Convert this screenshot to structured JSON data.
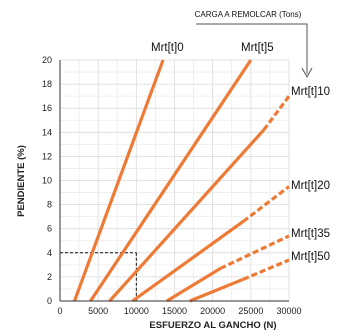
{
  "chart_data": {
    "type": "line",
    "top_label": "CARGA A REMOLCAR (Tons)",
    "xlabel": "ESFUERZO AL GANCHO (N)",
    "ylabel": "PENDIENTE (%)",
    "xlim": [
      0,
      30000
    ],
    "ylim": [
      0,
      20
    ],
    "x_ticks": [
      "0",
      "5000",
      "10000",
      "15000",
      "20000",
      "25000",
      "30000"
    ],
    "y_ticks": [
      "0",
      "2",
      "4",
      "6",
      "8",
      "10",
      "12",
      "14",
      "16",
      "18",
      "20"
    ],
    "grid": true,
    "line_color": "#ee7a35",
    "series": [
      {
        "name": "Mrt[t]0",
        "points": [
          [
            1900,
            0
          ],
          [
            13500,
            20
          ]
        ]
      },
      {
        "name": "Mrt[t]5",
        "points": [
          [
            4000,
            0
          ],
          [
            25000,
            20
          ]
        ]
      },
      {
        "name": "Mrt[t]10",
        "points": [
          [
            6500,
            0
          ],
          [
            26700,
            14.2
          ]
        ],
        "dashed_points": [
          [
            26700,
            14.2
          ],
          [
            30000,
            17
          ]
        ]
      },
      {
        "name": "Mrt[t]20",
        "points": [
          [
            9500,
            0
          ],
          [
            24000,
            6.6
          ]
        ],
        "dashed_points": [
          [
            24000,
            6.6
          ],
          [
            30000,
            9.5
          ]
        ]
      },
      {
        "name": "Mrt[t]35",
        "points": [
          [
            14000,
            0
          ],
          [
            21000,
            2.7
          ]
        ],
        "dashed_points": [
          [
            21000,
            2.7
          ],
          [
            30000,
            5.4
          ]
        ]
      },
      {
        "name": "Mrt[t]50",
        "points": [
          [
            17000,
            0
          ],
          [
            24000,
            1.8
          ]
        ],
        "dashed_points": [
          [
            24000,
            1.8
          ],
          [
            30000,
            3.4
          ]
        ]
      }
    ],
    "reference_lines": {
      "x": 10000,
      "y": 4
    }
  }
}
